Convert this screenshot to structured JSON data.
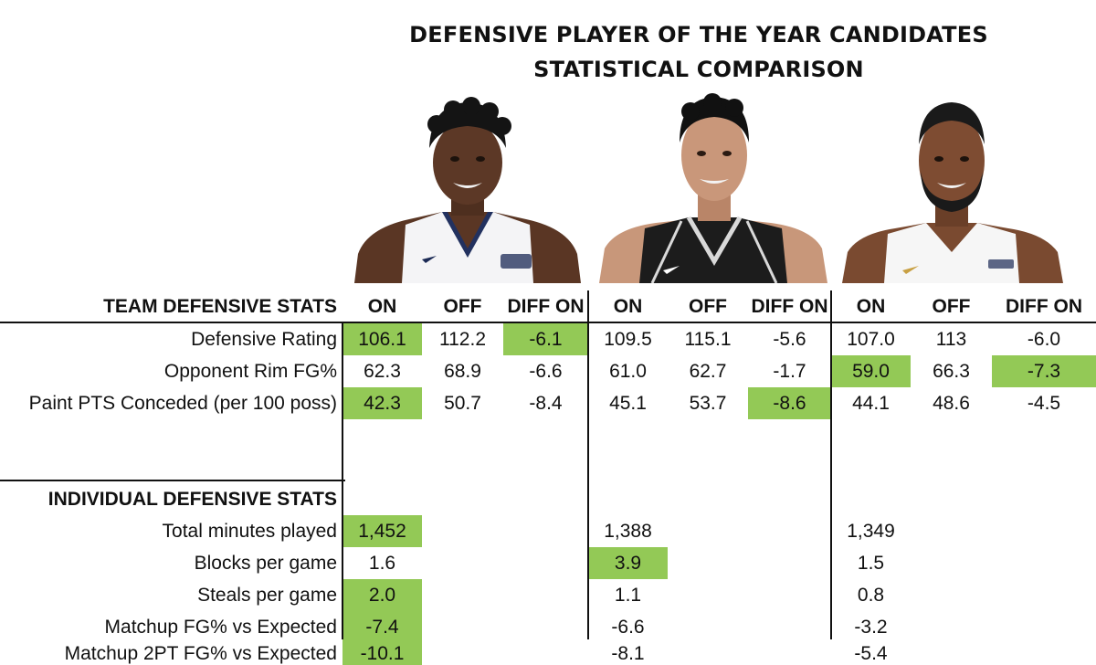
{
  "title_line1": "DEFENSIVE PLAYER OF THE YEAR CANDIDATES",
  "title_line2": "STATISTICAL COMPARISON",
  "colors": {
    "highlight": "#93c956",
    "text": "#111111",
    "background": "#ffffff"
  },
  "players": [
    {
      "jersey": "white-navy",
      "sponsor": "Robinhood"
    },
    {
      "jersey": "black",
      "sponsor": ""
    },
    {
      "jersey": "white-gold",
      "sponsor": "CLIFFS"
    }
  ],
  "chart_data": {
    "type": "table",
    "title": "DEFENSIVE PLAYER OF THE YEAR CANDIDATES STATISTICAL COMPARISON",
    "highlight_color": "#93c956",
    "team_section": {
      "label": "TEAM DEFENSIVE STATS",
      "columns": [
        "ON",
        "OFF",
        "DIFF ON",
        "ON",
        "OFF",
        "DIFF ON",
        "ON",
        "OFF",
        "DIFF ON"
      ],
      "rows": [
        {
          "label": "Defensive Rating",
          "values": [
            "106.1",
            "112.2",
            "-6.1",
            "109.5",
            "115.1",
            "-5.6",
            "107.0",
            "113",
            "-6.0"
          ],
          "highlight": [
            true,
            false,
            true,
            false,
            false,
            false,
            false,
            false,
            false
          ]
        },
        {
          "label": "Opponent Rim FG%",
          "values": [
            "62.3",
            "68.9",
            "-6.6",
            "61.0",
            "62.7",
            "-1.7",
            "59.0",
            "66.3",
            "-7.3"
          ],
          "highlight": [
            false,
            false,
            false,
            false,
            false,
            false,
            true,
            false,
            true
          ]
        },
        {
          "label": "Paint PTS Conceded (per 100 poss)",
          "values": [
            "42.3",
            "50.7",
            "-8.4",
            "45.1",
            "53.7",
            "-8.6",
            "44.1",
            "48.6",
            "-4.5"
          ],
          "highlight": [
            true,
            false,
            false,
            false,
            false,
            true,
            false,
            false,
            false
          ]
        }
      ]
    },
    "individual_section": {
      "label": "INDIVIDUAL DEFENSIVE STATS",
      "rows": [
        {
          "label": "Total minutes played",
          "values": [
            "1,452",
            "1,388",
            "1,349"
          ],
          "highlight": [
            true,
            false,
            false
          ]
        },
        {
          "label": "Blocks per game",
          "values": [
            "1.6",
            "3.9",
            "1.5"
          ],
          "highlight": [
            false,
            true,
            false
          ]
        },
        {
          "label": "Steals per game",
          "values": [
            "2.0",
            "1.1",
            "0.8"
          ],
          "highlight": [
            true,
            false,
            false
          ]
        },
        {
          "label": "Matchup FG% vs Expected",
          "values": [
            "-7.4",
            "-6.6",
            "-3.2"
          ],
          "highlight": [
            true,
            false,
            false
          ]
        },
        {
          "label": "Matchup 2PT FG% vs Expected",
          "values": [
            "-10.1",
            "-8.1",
            "-5.4"
          ],
          "highlight": [
            true,
            false,
            false
          ]
        }
      ]
    }
  }
}
